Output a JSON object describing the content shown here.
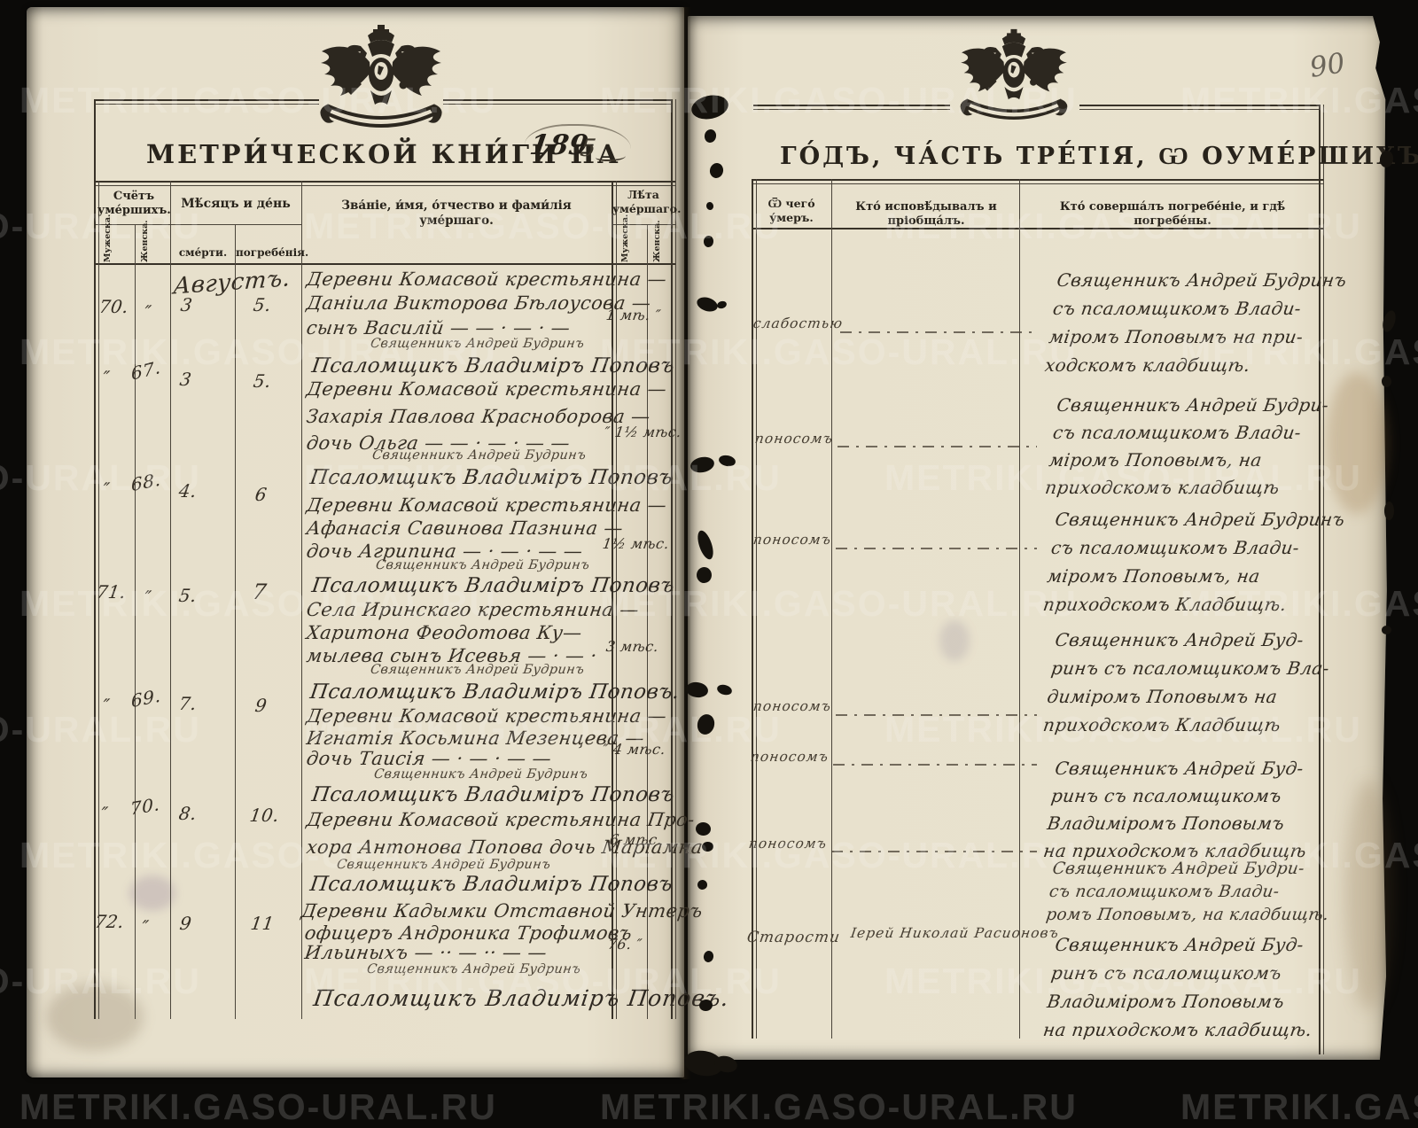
{
  "page_number": "90",
  "watermark": {
    "text": "METRIKI.GASO-URAL.RU"
  },
  "left_page": {
    "emblem": "imperial-double-eagle",
    "title": "МЕТРИ́ЧЕСКОЙ КНИ́ГИ НА",
    "year_handwritten": "189",
    "year_suffix": "5",
    "month_label": "Августъ.",
    "header": {
      "count_group": "Счётъ уме́ршихъ.",
      "count_male": "Мужеска.",
      "count_female": "Женска.",
      "date_group": "Мѣ́сяцъ и де́нь",
      "date_death": "сме́рти.",
      "date_burial": "погребе́нія.",
      "name_col": "Зва́ніе, и́мя, о́тчество и фами́лія уме́ршаго.",
      "age_group": "Лѣ́та уме́ршаго.",
      "age_male": "Мужеска.",
      "age_female": "Женска."
    }
  },
  "right_page": {
    "emblem": "imperial-double-eagle",
    "title": "ГО́ДЪ, ЧА́СТЬ ТРЕ́ТІЯ, Ѡ ОУМЕ́РШИХЪ.",
    "header": {
      "cause_col": "Ѿ чего́ у́меръ.",
      "confessor_col": "Кто́ исповѣ́дывалъ и пріобща́лъ.",
      "burial_col": "Кто́ соверша́лъ погребе́ніе, и гдѣ́ погребе́ны."
    }
  },
  "entries": [
    {
      "num_male": "70.",
      "num_female": "″",
      "death_day": "3",
      "burial_day": "5.",
      "name_lines": [
        "Деревни Комасвой крестьянина —",
        "Даніила Викторова Бѣлоусова —",
        "сынъ Василій — — · — · —"
      ],
      "age": "1 мѣ.   ″",
      "clergy1": "Священникъ Андрей Будринъ",
      "clergy2": "Псаломщикъ Владиміръ Поповъ",
      "cause": "слабостью",
      "burial_lines": [
        "Священникъ Андрей Будринъ",
        "съ псаломщикомъ Влади-",
        "міромъ Поповымъ на при-",
        "ходскомъ кладбищѣ."
      ]
    },
    {
      "num_male": "″",
      "num_female": "67.",
      "death_day": "3",
      "burial_day": "5.",
      "name_lines": [
        "Деревни Комасвой крестьянина —",
        "Захарія Павлова Красноборова —",
        "дочь Ольга — — · — · — —"
      ],
      "age": "″ 1½ мѣс.",
      "clergy1": "Священникъ Андрей Будринъ",
      "clergy2": "Псаломщикъ Владиміръ Поповъ",
      "cause": "поносомъ",
      "burial_lines": [
        "Священникъ Андрей Будри-",
        "съ псаломщикомъ Влади-",
        "міромъ Поповымъ, на",
        "приходскомъ кладбищѣ"
      ]
    },
    {
      "num_male": "″",
      "num_female": "68.",
      "death_day": "4.",
      "burial_day": "6",
      "name_lines": [
        "Деревни Комасвой крестьянина —",
        "Афанасія Савинова Пазнина —",
        "дочь Агрипина — · — · — —"
      ],
      "age": "1½ мѣс.",
      "clergy1": "Священникъ Андрей Будринъ",
      "clergy2": "Псаломщикъ Владиміръ Поповъ",
      "cause": "поносомъ",
      "burial_lines": [
        "Священникъ Андрей Будринъ",
        "съ псаломщикомъ Влади-",
        "міромъ Поповымъ, на",
        "приходскомъ Кладбищѣ."
      ]
    },
    {
      "num_male": "71.",
      "num_female": "″",
      "death_day": "5.",
      "burial_day": "7",
      "name_lines": [
        "Села Иринскаго крестьянина —",
        "Харитона Феодотова Ку—",
        "мылева сынъ Исевья — · — ·"
      ],
      "age": "3 мѣс.",
      "clergy1": "Священникъ Андрей Будринъ",
      "clergy2": "Псаломщикъ Владиміръ Поповъ.",
      "cause": "поносомъ",
      "burial_lines": [
        "Священникъ Андрей Буд-",
        "ринъ съ псаломщикомъ Вла-",
        "диміромъ Поповымъ на",
        "приходскомъ Кладбищѣ"
      ]
    },
    {
      "num_male": "″",
      "num_female": "69.",
      "death_day": "7.",
      "burial_day": "9",
      "name_lines": [
        "Деревни Комасвой крестьянина —",
        "Игнатія Косьмина Мезенцева —",
        "дочь Таисія — · — · — —"
      ],
      "age": "″  4 мѣс.",
      "clergy1": "Священникъ Андрей Будринъ",
      "clergy2": "Псаломщикъ Владиміръ Поповъ",
      "cause": "поносомъ",
      "burial_lines": [
        "Священникъ Андрей Буд-",
        "ринъ съ псаломщикомъ",
        "Владиміромъ Поповымъ",
        "на приходскомъ кладбищѣ"
      ]
    },
    {
      "num_male": "″",
      "num_female": "70.",
      "death_day": "8.",
      "burial_day": "10.",
      "name_lines": [
        "Деревни Комасвой крестьянина Про-",
        "хора Антонова Попова дочь Маріамна"
      ],
      "age": "6 мѣс.",
      "clergy1": "Священникъ Андрей Будринъ",
      "clergy2": "Псаломщикъ Владиміръ Поповъ",
      "cause": "поносомъ",
      "burial_lines": [
        "Священникъ Андрей Будри-",
        "съ псаломщикомъ Влади-",
        "ромъ Поповымъ, на кладбищѣ."
      ]
    },
    {
      "num_male": "72.",
      "num_female": "″",
      "death_day": "9",
      "burial_day": "11",
      "name_lines": [
        "Деревни Кадымки Отставной Унтеръ",
        "офицеръ Андроника Трофимовъ",
        "Ильиныхъ — ·· — ·· — —"
      ],
      "age": "76.    ″",
      "clergy1": "Священникъ Андрей Будринъ",
      "clergy2": "Псаломщикъ Владиміръ Поповъ.",
      "cause": "Старости",
      "confessor": "Іерей Николай Расионовъ",
      "burial_lines": [
        "Священникъ Андрей Буд-",
        "ринъ съ псаломщикомъ",
        "Владиміромъ Поповымъ",
        "на приходскомъ кладбищѣ."
      ]
    }
  ]
}
